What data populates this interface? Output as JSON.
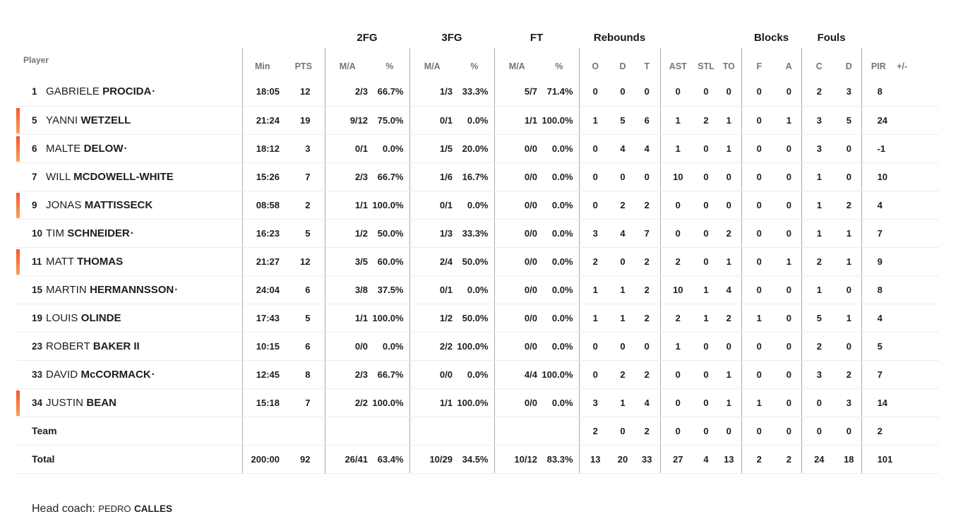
{
  "colors": {
    "on_court_bar_top": "#f3562e",
    "on_court_bar_bottom": "#f7a25e",
    "column_divider": "#a9a9a9",
    "row_separator": "#ececec",
    "header_text": "#71757b",
    "body_text": "#1b1d21"
  },
  "header": {
    "player": "Player",
    "groups": {
      "fg2": "2FG",
      "fg3": "3FG",
      "ft": "FT",
      "rebounds": "Rebounds",
      "blocks": "Blocks",
      "fouls": "Fouls"
    },
    "cols": {
      "min": "Min",
      "pts": "PTS",
      "ma": "M/A",
      "pct": "%",
      "reb_o": "O",
      "reb_d": "D",
      "reb_t": "T",
      "ast": "AST",
      "stl": "STL",
      "to": "TO",
      "blk_f": "F",
      "blk_a": "A",
      "foul_c": "C",
      "foul_d": "D",
      "pir": "PIR",
      "pm": "+/-"
    }
  },
  "players": [
    {
      "number": "1",
      "first": "GABRIELE",
      "last": "PROCIDA",
      "dot": true,
      "starter": false,
      "min": "18:05",
      "pts": "12",
      "fg2_ma": "2/3",
      "fg2_pct": "66.7%",
      "fg3_ma": "1/3",
      "fg3_pct": "33.3%",
      "ft_ma": "5/7",
      "ft_pct": "71.4%",
      "reb_o": "0",
      "reb_d": "0",
      "reb_t": "0",
      "ast": "0",
      "stl": "0",
      "to": "0",
      "blk_f": "0",
      "blk_a": "0",
      "foul_c": "2",
      "foul_d": "3",
      "pir": "8",
      "pm": ""
    },
    {
      "number": "5",
      "first": "YANNI",
      "last": "WETZELL",
      "dot": false,
      "starter": true,
      "min": "21:24",
      "pts": "19",
      "fg2_ma": "9/12",
      "fg2_pct": "75.0%",
      "fg3_ma": "0/1",
      "fg3_pct": "0.0%",
      "ft_ma": "1/1",
      "ft_pct": "100.0%",
      "reb_o": "1",
      "reb_d": "5",
      "reb_t": "6",
      "ast": "1",
      "stl": "2",
      "to": "1",
      "blk_f": "0",
      "blk_a": "1",
      "foul_c": "3",
      "foul_d": "5",
      "pir": "24",
      "pm": ""
    },
    {
      "number": "6",
      "first": "MALTE",
      "last": "DELOW",
      "dot": true,
      "starter": true,
      "min": "18:12",
      "pts": "3",
      "fg2_ma": "0/1",
      "fg2_pct": "0.0%",
      "fg3_ma": "1/5",
      "fg3_pct": "20.0%",
      "ft_ma": "0/0",
      "ft_pct": "0.0%",
      "reb_o": "0",
      "reb_d": "4",
      "reb_t": "4",
      "ast": "1",
      "stl": "0",
      "to": "1",
      "blk_f": "0",
      "blk_a": "0",
      "foul_c": "3",
      "foul_d": "0",
      "pir": "-1",
      "pm": ""
    },
    {
      "number": "7",
      "first": "WILL",
      "last": "MCDOWELL-WHITE",
      "dot": false,
      "starter": false,
      "min": "15:26",
      "pts": "7",
      "fg2_ma": "2/3",
      "fg2_pct": "66.7%",
      "fg3_ma": "1/6",
      "fg3_pct": "16.7%",
      "ft_ma": "0/0",
      "ft_pct": "0.0%",
      "reb_o": "0",
      "reb_d": "0",
      "reb_t": "0",
      "ast": "10",
      "stl": "0",
      "to": "0",
      "blk_f": "0",
      "blk_a": "0",
      "foul_c": "1",
      "foul_d": "0",
      "pir": "10",
      "pm": ""
    },
    {
      "number": "9",
      "first": "JONAS",
      "last": "MATTISSECK",
      "dot": false,
      "starter": true,
      "min": "08:58",
      "pts": "2",
      "fg2_ma": "1/1",
      "fg2_pct": "100.0%",
      "fg3_ma": "0/1",
      "fg3_pct": "0.0%",
      "ft_ma": "0/0",
      "ft_pct": "0.0%",
      "reb_o": "0",
      "reb_d": "2",
      "reb_t": "2",
      "ast": "0",
      "stl": "0",
      "to": "0",
      "blk_f": "0",
      "blk_a": "0",
      "foul_c": "1",
      "foul_d": "2",
      "pir": "4",
      "pm": ""
    },
    {
      "number": "10",
      "first": "TIM",
      "last": "SCHNEIDER",
      "dot": true,
      "starter": false,
      "min": "16:23",
      "pts": "5",
      "fg2_ma": "1/2",
      "fg2_pct": "50.0%",
      "fg3_ma": "1/3",
      "fg3_pct": "33.3%",
      "ft_ma": "0/0",
      "ft_pct": "0.0%",
      "reb_o": "3",
      "reb_d": "4",
      "reb_t": "7",
      "ast": "0",
      "stl": "0",
      "to": "2",
      "blk_f": "0",
      "blk_a": "0",
      "foul_c": "1",
      "foul_d": "1",
      "pir": "7",
      "pm": ""
    },
    {
      "number": "11",
      "first": "MATT",
      "last": "THOMAS",
      "dot": false,
      "starter": true,
      "min": "21:27",
      "pts": "12",
      "fg2_ma": "3/5",
      "fg2_pct": "60.0%",
      "fg3_ma": "2/4",
      "fg3_pct": "50.0%",
      "ft_ma": "0/0",
      "ft_pct": "0.0%",
      "reb_o": "2",
      "reb_d": "0",
      "reb_t": "2",
      "ast": "2",
      "stl": "0",
      "to": "1",
      "blk_f": "0",
      "blk_a": "1",
      "foul_c": "2",
      "foul_d": "1",
      "pir": "9",
      "pm": ""
    },
    {
      "number": "15",
      "first": "MARTIN",
      "last": "HERMANNSSON",
      "dot": true,
      "starter": false,
      "min": "24:04",
      "pts": "6",
      "fg2_ma": "3/8",
      "fg2_pct": "37.5%",
      "fg3_ma": "0/1",
      "fg3_pct": "0.0%",
      "ft_ma": "0/0",
      "ft_pct": "0.0%",
      "reb_o": "1",
      "reb_d": "1",
      "reb_t": "2",
      "ast": "10",
      "stl": "1",
      "to": "4",
      "blk_f": "0",
      "blk_a": "0",
      "foul_c": "1",
      "foul_d": "0",
      "pir": "8",
      "pm": ""
    },
    {
      "number": "19",
      "first": "LOUIS",
      "last": "OLINDE",
      "dot": false,
      "starter": false,
      "min": "17:43",
      "pts": "5",
      "fg2_ma": "1/1",
      "fg2_pct": "100.0%",
      "fg3_ma": "1/2",
      "fg3_pct": "50.0%",
      "ft_ma": "0/0",
      "ft_pct": "0.0%",
      "reb_o": "1",
      "reb_d": "1",
      "reb_t": "2",
      "ast": "2",
      "stl": "1",
      "to": "2",
      "blk_f": "1",
      "blk_a": "0",
      "foul_c": "5",
      "foul_d": "1",
      "pir": "4",
      "pm": ""
    },
    {
      "number": "23",
      "first": "ROBERT",
      "last": "BAKER II",
      "dot": false,
      "starter": false,
      "min": "10:15",
      "pts": "6",
      "fg2_ma": "0/0",
      "fg2_pct": "0.0%",
      "fg3_ma": "2/2",
      "fg3_pct": "100.0%",
      "ft_ma": "0/0",
      "ft_pct": "0.0%",
      "reb_o": "0",
      "reb_d": "0",
      "reb_t": "0",
      "ast": "1",
      "stl": "0",
      "to": "0",
      "blk_f": "0",
      "blk_a": "0",
      "foul_c": "2",
      "foul_d": "0",
      "pir": "5",
      "pm": ""
    },
    {
      "number": "33",
      "first": "DAVID",
      "last": "McCORMACK",
      "dot": true,
      "starter": false,
      "min": "12:45",
      "pts": "8",
      "fg2_ma": "2/3",
      "fg2_pct": "66.7%",
      "fg3_ma": "0/0",
      "fg3_pct": "0.0%",
      "ft_ma": "4/4",
      "ft_pct": "100.0%",
      "reb_o": "0",
      "reb_d": "2",
      "reb_t": "2",
      "ast": "0",
      "stl": "0",
      "to": "1",
      "blk_f": "0",
      "blk_a": "0",
      "foul_c": "3",
      "foul_d": "2",
      "pir": "7",
      "pm": ""
    },
    {
      "number": "34",
      "first": "JUSTIN",
      "last": "BEAN",
      "dot": false,
      "starter": true,
      "min": "15:18",
      "pts": "7",
      "fg2_ma": "2/2",
      "fg2_pct": "100.0%",
      "fg3_ma": "1/1",
      "fg3_pct": "100.0%",
      "ft_ma": "0/0",
      "ft_pct": "0.0%",
      "reb_o": "3",
      "reb_d": "1",
      "reb_t": "4",
      "ast": "0",
      "stl": "0",
      "to": "1",
      "blk_f": "1",
      "blk_a": "0",
      "foul_c": "0",
      "foul_d": "3",
      "pir": "14",
      "pm": ""
    }
  ],
  "team_row": {
    "label": "Team",
    "reb_o": "2",
    "reb_d": "0",
    "reb_t": "2",
    "ast": "0",
    "stl": "0",
    "to": "0",
    "blk_f": "0",
    "blk_a": "0",
    "foul_c": "0",
    "foul_d": "0",
    "pir": "2",
    "pm": ""
  },
  "total_row": {
    "label": "Total",
    "min": "200:00",
    "pts": "92",
    "fg2_ma": "26/41",
    "fg2_pct": "63.4%",
    "fg3_ma": "10/29",
    "fg3_pct": "34.5%",
    "ft_ma": "10/12",
    "ft_pct": "83.3%",
    "reb_o": "13",
    "reb_d": "20",
    "reb_t": "33",
    "ast": "27",
    "stl": "4",
    "to": "13",
    "blk_f": "2",
    "blk_a": "2",
    "foul_c": "24",
    "foul_d": "18",
    "pir": "101",
    "pm": ""
  },
  "footer": {
    "label": "Head coach:",
    "coach_first": "PEDRO",
    "coach_last": "CALLES"
  }
}
